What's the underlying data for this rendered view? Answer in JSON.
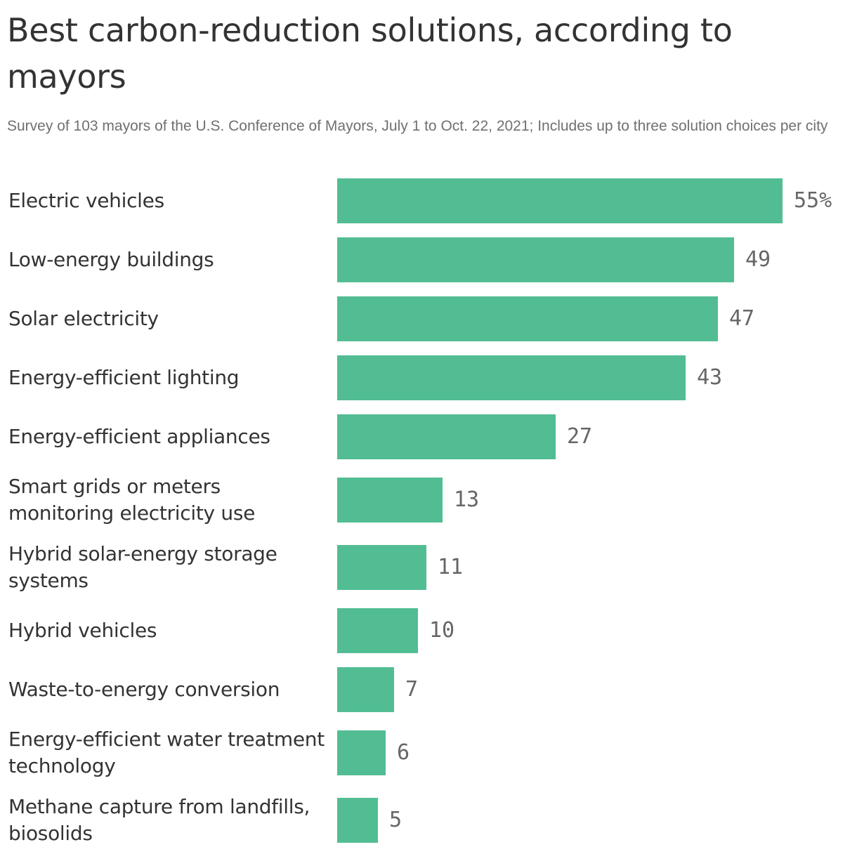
{
  "title": "Best carbon-reduction solutions, according to mayors",
  "subtitle": "Survey of 103 mayors of the U.S. Conference of Mayors, July 1 to Oct. 22, 2021; Includes up to three solution choices per city",
  "colors": {
    "bar": "#52bd93",
    "value_text": "#666666",
    "label_text": "#333333",
    "subtitle_text": "#707070"
  },
  "chart_data": {
    "type": "bar",
    "orientation": "horizontal",
    "categories": [
      "Electric vehicles",
      "Low-energy buildings",
      "Solar electricity",
      "Energy-efficient lighting",
      "Energy-efficient appliances",
      "Smart grids or meters monitoring electricity use",
      "Hybrid solar-energy storage systems",
      "Hybrid vehicles",
      "Waste-to-energy conversion",
      "Energy-efficient water treatment technology",
      "Methane capture from landfills, biosolids"
    ],
    "values": [
      55,
      49,
      47,
      43,
      27,
      13,
      11,
      10,
      7,
      6,
      5
    ],
    "value_labels": [
      "55%",
      "49",
      "47",
      "43",
      "27",
      "13",
      "11",
      "10",
      "7",
      "6",
      "5"
    ],
    "unit": "%",
    "xlim": [
      0,
      55
    ],
    "grid": false,
    "legend": "none"
  }
}
